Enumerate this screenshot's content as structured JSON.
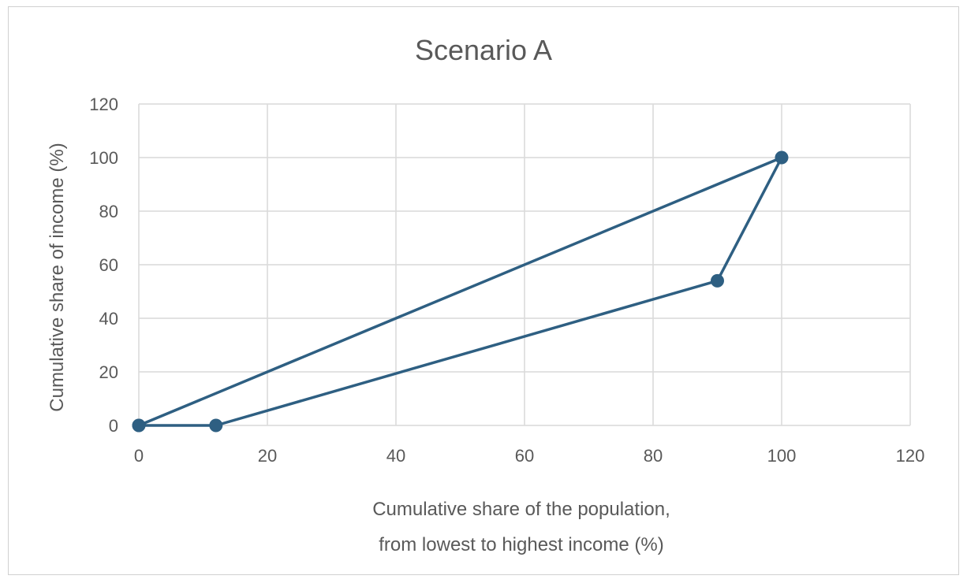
{
  "chart_data": {
    "type": "scatter",
    "title": "Scenario A",
    "xlabel_lines": [
      "Cumulative share of the population,",
      "from lowest to highest income (%)"
    ],
    "ylabel": "Cumulative share of income (%)",
    "xlim": [
      0,
      120
    ],
    "ylim": [
      0,
      120
    ],
    "x_ticks": [
      0,
      20,
      40,
      60,
      80,
      100,
      120
    ],
    "y_ticks": [
      0,
      20,
      40,
      60,
      80,
      100,
      120
    ],
    "grid": true,
    "legend": "none",
    "series": [
      {
        "color": "#2e5f82",
        "marker": "circle",
        "points": [
          {
            "x": 0,
            "y": 0
          },
          {
            "x": 100,
            "y": 100
          },
          {
            "x": 90,
            "y": 54
          },
          {
            "x": 12,
            "y": 0
          },
          {
            "x": 0,
            "y": 0
          }
        ]
      }
    ]
  }
}
